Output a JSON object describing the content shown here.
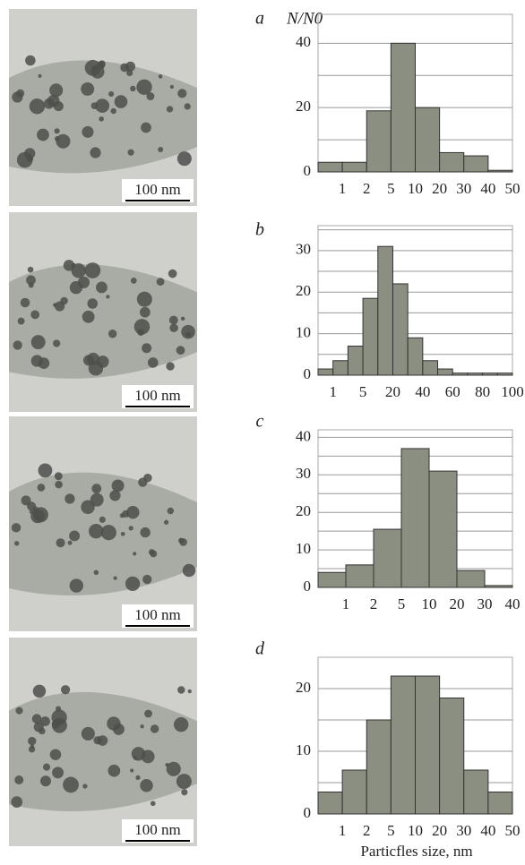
{
  "chart_data": [
    {
      "type": "histogram",
      "panel": "a",
      "scale_bar": "100 nm",
      "y_label": "N/N0",
      "bins": [
        null,
        1,
        2,
        5,
        10,
        20,
        30,
        40,
        50
      ],
      "values": [
        3,
        3,
        19,
        40,
        20,
        6,
        5,
        0.5
      ],
      "ylim": [
        0,
        49
      ],
      "yticks": [
        0,
        20,
        40
      ],
      "ygrid": [
        10,
        20,
        30,
        40
      ],
      "color": "#8b8f82"
    },
    {
      "type": "histogram",
      "panel": "b",
      "scale_bar": "100 nm",
      "bins": [
        null,
        1,
        null,
        5,
        null,
        20,
        null,
        40,
        null,
        60,
        null,
        80,
        null,
        100
      ],
      "values": [
        1.5,
        3.5,
        7,
        18.5,
        31,
        22,
        9,
        3.5,
        1.5,
        0.5,
        0.5,
        0.5,
        0.5
      ],
      "ylim": [
        0,
        36
      ],
      "yticks": [
        0,
        10,
        20,
        30
      ],
      "ygrid": [
        5,
        10,
        15,
        20,
        25,
        30,
        35
      ],
      "color": "#8b8f82"
    },
    {
      "type": "histogram",
      "panel": "c",
      "scale_bar": "100 nm",
      "bins": [
        null,
        1,
        2,
        5,
        10,
        20,
        30,
        40
      ],
      "values": [
        4,
        6,
        15.5,
        37,
        31,
        4.5,
        0.5
      ],
      "ylim": [
        0,
        42
      ],
      "yticks": [
        0,
        10,
        20,
        30,
        40
      ],
      "ygrid": [
        5,
        10,
        15,
        20,
        25,
        30,
        35,
        40
      ],
      "color": "#8b8f82"
    },
    {
      "type": "histogram",
      "panel": "d",
      "scale_bar": "100 nm",
      "x_label": "Particfles size, nm",
      "bins": [
        null,
        1,
        2,
        5,
        10,
        20,
        30,
        40,
        50
      ],
      "values": [
        3.5,
        7,
        15,
        22,
        22,
        18.5,
        7,
        3.5
      ],
      "ylim": [
        0,
        25
      ],
      "yticks": [
        0,
        10,
        20
      ],
      "ygrid": [
        5,
        10,
        15,
        20
      ],
      "color": "#8b8f82"
    }
  ]
}
